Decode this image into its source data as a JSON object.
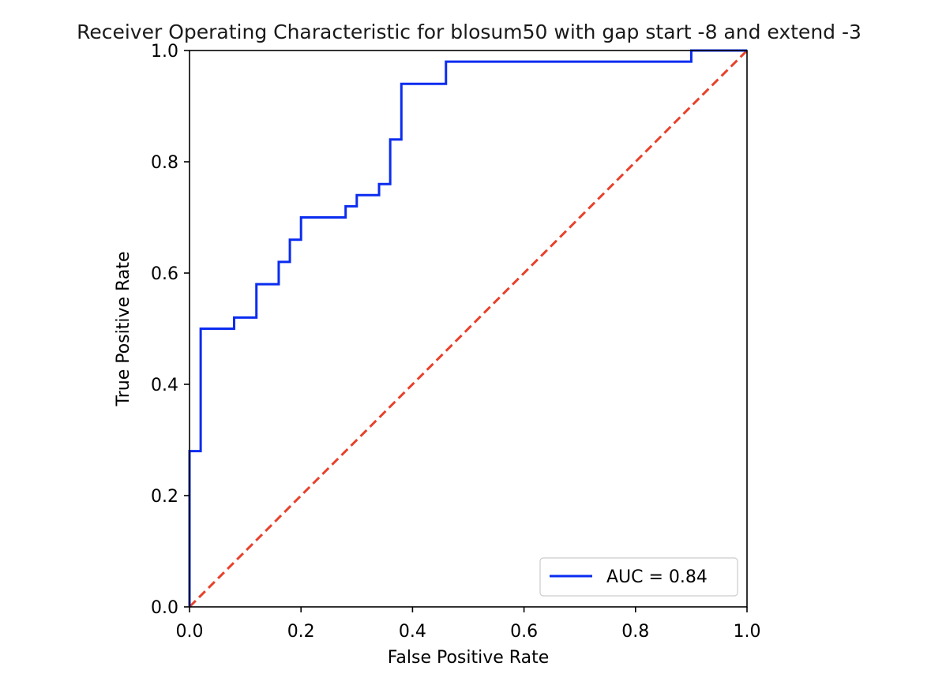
{
  "colors": {
    "roc_line": "#0a2cf0",
    "diagonal": "#e8412b",
    "axes": "#000000",
    "background": "#ffffff"
  },
  "chart_data": {
    "type": "line",
    "title": "Receiver Operating Characteristic for blosum50 with gap start -8 and extend -3",
    "xlabel": "False Positive Rate",
    "ylabel": "True Positive Rate",
    "xlim": [
      0.0,
      1.0
    ],
    "ylim": [
      0.0,
      1.0
    ],
    "x_ticks": [
      "0.0",
      "0.2",
      "0.4",
      "0.6",
      "0.8",
      "1.0"
    ],
    "y_ticks": [
      "0.0",
      "0.2",
      "0.4",
      "0.6",
      "0.8",
      "1.0"
    ],
    "grid": false,
    "legend_position": "lower-right",
    "series": [
      {
        "name": "AUC = 0.84",
        "style": "solid",
        "color": "#0a2cf0",
        "x": [
          0.0,
          0.0,
          0.02,
          0.02,
          0.08,
          0.08,
          0.12,
          0.12,
          0.16,
          0.16,
          0.18,
          0.18,
          0.2,
          0.2,
          0.28,
          0.28,
          0.3,
          0.3,
          0.34,
          0.34,
          0.36,
          0.36,
          0.38,
          0.38,
          0.46,
          0.46,
          0.9,
          0.9,
          1.0
        ],
        "y": [
          0.0,
          0.28,
          0.28,
          0.5,
          0.5,
          0.52,
          0.52,
          0.58,
          0.58,
          0.62,
          0.62,
          0.66,
          0.66,
          0.7,
          0.7,
          0.72,
          0.72,
          0.74,
          0.74,
          0.76,
          0.76,
          0.84,
          0.84,
          0.94,
          0.94,
          0.98,
          0.98,
          1.0,
          1.0
        ]
      },
      {
        "style": "dashed",
        "color": "#e8412b",
        "x": [
          0.0,
          1.0
        ],
        "y": [
          0.0,
          1.0
        ]
      }
    ]
  }
}
